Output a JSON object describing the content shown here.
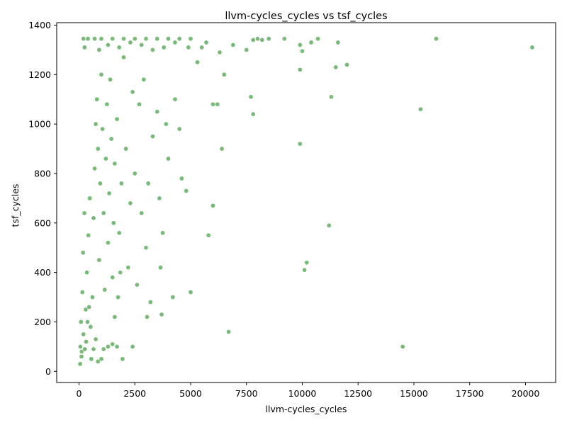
{
  "chart_data": {
    "type": "scatter",
    "title": "llvm-cycles_cycles vs tsf_cycles",
    "xlabel": "llvm-cycles_cycles",
    "ylabel": "tsf_cycles",
    "xlim": [
      -1000,
      21350
    ],
    "ylim": [
      -45,
      1410
    ],
    "xticks": [
      0,
      2500,
      5000,
      7500,
      10000,
      12500,
      15000,
      17500,
      20000
    ],
    "yticks": [
      0,
      200,
      400,
      600,
      800,
      1000,
      1200,
      1400
    ],
    "grid": false,
    "legend": "none",
    "colors": {
      "marker_fill": "#228b22",
      "marker_edge": "#ffffff"
    },
    "series": [
      {
        "points": [
          [
            50,
            30
          ],
          [
            120,
            80
          ],
          [
            200,
            150
          ],
          [
            300,
            250
          ],
          [
            350,
            400
          ],
          [
            420,
            550
          ],
          [
            480,
            700
          ],
          [
            520,
            180
          ],
          [
            600,
            300
          ],
          [
            650,
            620
          ],
          [
            700,
            820
          ],
          [
            750,
            1000
          ],
          [
            800,
            1100
          ],
          [
            850,
            900
          ],
          [
            900,
            450
          ],
          [
            950,
            760
          ],
          [
            1000,
            1200
          ],
          [
            1050,
            980
          ],
          [
            1100,
            640
          ],
          [
            1150,
            330
          ],
          [
            1200,
            860
          ],
          [
            1250,
            1080
          ],
          [
            1300,
            520
          ],
          [
            1350,
            720
          ],
          [
            1400,
            1180
          ],
          [
            1450,
            940
          ],
          [
            1500,
            380
          ],
          [
            1550,
            600
          ],
          [
            1600,
            840
          ],
          [
            1700,
            1020
          ],
          [
            1800,
            560
          ],
          [
            1900,
            760
          ],
          [
            2000,
            1270
          ],
          [
            2100,
            900
          ],
          [
            2200,
            420
          ],
          [
            2300,
            680
          ],
          [
            2400,
            1130
          ],
          [
            2500,
            800
          ],
          [
            2600,
            350
          ],
          [
            2700,
            1080
          ],
          [
            2800,
            640
          ],
          [
            2900,
            1180
          ],
          [
            3000,
            500
          ],
          [
            3050,
            220
          ],
          [
            3100,
            760
          ],
          [
            3200,
            280
          ],
          [
            3300,
            950
          ],
          [
            3500,
            1050
          ],
          [
            3600,
            700
          ],
          [
            3650,
            420
          ],
          [
            3700,
            230
          ],
          [
            3750,
            560
          ],
          [
            3900,
            1000
          ],
          [
            4000,
            860
          ],
          [
            4200,
            300
          ],
          [
            4300,
            1100
          ],
          [
            4500,
            980
          ],
          [
            4600,
            780
          ],
          [
            4800,
            730
          ],
          [
            5000,
            320
          ],
          [
            5300,
            1250
          ],
          [
            5700,
            1330
          ],
          [
            5800,
            550
          ],
          [
            6000,
            670
          ],
          [
            6000,
            1080
          ],
          [
            6200,
            1080
          ],
          [
            6400,
            900
          ],
          [
            6500,
            1200
          ],
          [
            6700,
            160
          ],
          [
            6900,
            1320
          ],
          [
            7500,
            1300
          ],
          [
            7700,
            1110
          ],
          [
            7800,
            1340
          ],
          [
            7800,
            1040
          ],
          [
            8000,
            1345
          ],
          [
            8200,
            1340
          ],
          [
            8500,
            1345
          ],
          [
            9200,
            1345
          ],
          [
            9900,
            1320
          ],
          [
            9900,
            1220
          ],
          [
            9900,
            920
          ],
          [
            10000,
            1295
          ],
          [
            10100,
            410
          ],
          [
            10200,
            440
          ],
          [
            10400,
            1330
          ],
          [
            10700,
            1345
          ],
          [
            11200,
            590
          ],
          [
            11300,
            1110
          ],
          [
            11500,
            1230
          ],
          [
            11600,
            1330
          ],
          [
            12000,
            1240
          ],
          [
            14500,
            100
          ],
          [
            15300,
            1060
          ],
          [
            16000,
            1345
          ],
          [
            20300,
            1310
          ],
          [
            200,
            1345
          ],
          [
            400,
            1345
          ],
          [
            700,
            1345
          ],
          [
            1000,
            1345
          ],
          [
            1500,
            1345
          ],
          [
            2000,
            1345
          ],
          [
            2500,
            1345
          ],
          [
            3000,
            1345
          ],
          [
            3500,
            1345
          ],
          [
            4000,
            1345
          ],
          [
            4500,
            1345
          ],
          [
            5000,
            1345
          ],
          [
            5500,
            1310
          ],
          [
            6300,
            1290
          ],
          [
            250,
            1310
          ],
          [
            900,
            1300
          ],
          [
            1300,
            1320
          ],
          [
            1800,
            1310
          ],
          [
            2300,
            1330
          ],
          [
            2800,
            1320
          ],
          [
            3300,
            1300
          ],
          [
            3800,
            1310
          ],
          [
            4300,
            1330
          ],
          [
            4900,
            1310
          ],
          [
            60,
            100
          ],
          [
            90,
            200
          ],
          [
            110,
            60
          ],
          [
            150,
            320
          ],
          [
            180,
            480
          ],
          [
            240,
            640
          ],
          [
            260,
            90
          ],
          [
            320,
            120
          ],
          [
            380,
            200
          ],
          [
            450,
            260
          ],
          [
            550,
            50
          ],
          [
            650,
            90
          ],
          [
            750,
            130
          ],
          [
            850,
            40
          ],
          [
            1000,
            50
          ],
          [
            1100,
            90
          ],
          [
            1300,
            100
          ],
          [
            1500,
            110
          ],
          [
            1700,
            100
          ],
          [
            2400,
            100
          ],
          [
            1950,
            50
          ],
          [
            1600,
            220
          ],
          [
            1750,
            300
          ],
          [
            1850,
            400
          ]
        ]
      }
    ]
  }
}
